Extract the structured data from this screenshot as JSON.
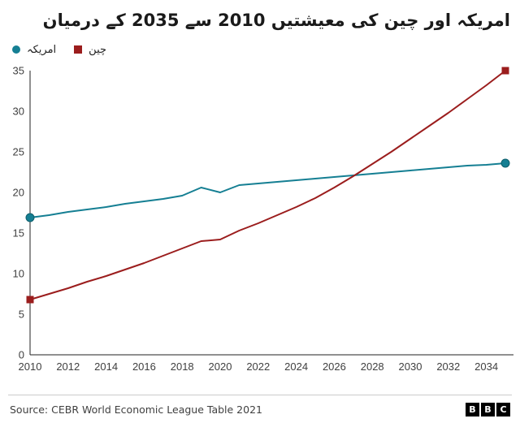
{
  "title": "امریکہ اور چین کی معیشتیں 2010 سے 2035 کے درمیان",
  "legend": [
    {
      "label": "امریکہ",
      "color": "#157f93",
      "marker": "circle"
    },
    {
      "label": "چین",
      "color": "#9b1d1d",
      "marker": "square"
    }
  ],
  "footer": {
    "source": "Source: CEBR World Economic League Table 2021",
    "logo_letters": [
      "B",
      "B",
      "C"
    ]
  },
  "chart_data": {
    "type": "line",
    "title": "امریکہ اور چین کی معیشتیں 2010 سے 2035 کے درمیان",
    "xlabel": "",
    "ylabel": "",
    "xlim": [
      2010,
      2035
    ],
    "ylim": [
      0,
      35
    ],
    "yticks": [
      0,
      5,
      10,
      15,
      20,
      25,
      30,
      35
    ],
    "xticks": [
      2010,
      2012,
      2014,
      2016,
      2018,
      2020,
      2022,
      2024,
      2026,
      2028,
      2030,
      2032,
      2034
    ],
    "grid": false,
    "legend_position": "top-left",
    "x": [
      2010,
      2011,
      2012,
      2013,
      2014,
      2015,
      2016,
      2017,
      2018,
      2019,
      2020,
      2021,
      2022,
      2023,
      2024,
      2025,
      2026,
      2027,
      2028,
      2029,
      2030,
      2031,
      2032,
      2033,
      2034,
      2035
    ],
    "series": [
      {
        "name": "امریکہ",
        "color": "#157f93",
        "marker": "circle",
        "values": [
          16.9,
          17.2,
          17.6,
          17.9,
          18.2,
          18.6,
          18.9,
          19.2,
          19.6,
          20.6,
          20.0,
          20.9,
          21.1,
          21.3,
          21.5,
          21.7,
          21.9,
          22.1,
          22.3,
          22.5,
          22.7,
          22.9,
          23.1,
          23.3,
          23.4,
          23.6
        ]
      },
      {
        "name": "چین",
        "color": "#9b1d1d",
        "marker": "square",
        "values": [
          6.8,
          7.5,
          8.2,
          9.0,
          9.7,
          10.5,
          11.3,
          12.2,
          13.1,
          14.0,
          14.2,
          15.3,
          16.2,
          17.2,
          18.2,
          19.3,
          20.6,
          22.0,
          23.5,
          25.0,
          26.6,
          28.2,
          29.8,
          31.5,
          33.2,
          35.0
        ]
      }
    ]
  }
}
